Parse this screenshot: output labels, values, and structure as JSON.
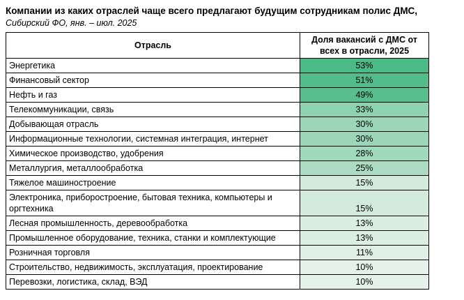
{
  "title": "Компании из каких отраслей чаще всего предлагают будущим сотрудникам полис ДМС,",
  "subtitle": "Сибирский ФО, янв. – июл. 2025",
  "table": {
    "headers": [
      "Отрасль",
      "Доля вакансий с ДМС от всех в отрасли, 2025"
    ],
    "rows": [
      {
        "industry": "Энергетика",
        "value": "53%",
        "color": "#4CBA87"
      },
      {
        "industry": "Финансовый сектор",
        "value": "51%",
        "color": "#52BC8A"
      },
      {
        "industry": "Нефть и газ",
        "value": "49%",
        "color": "#58BE8E"
      },
      {
        "industry": "Телекоммуникации, связь",
        "value": "33%",
        "color": "#8FD2AF"
      },
      {
        "industry": "Добывающая отрасль",
        "value": "30%",
        "color": "#9AD6B7"
      },
      {
        "industry": "Информационные технологии, системная интеграция, интернет",
        "value": "30%",
        "color": "#9AD6B7"
      },
      {
        "industry": "Химическое производство, удобрения",
        "value": "28%",
        "color": "#A1D9BB"
      },
      {
        "industry": "Металлургия, металлообработка",
        "value": "25%",
        "color": "#ABDCC2"
      },
      {
        "industry": "Тяжелое машиностроение",
        "value": "15%",
        "color": "#D3EBDC"
      },
      {
        "industry": "Электроника, приборостроение, бытовая техника, компьютеры и оргтехника",
        "value": "15%",
        "color": "#D3EBDC"
      },
      {
        "industry": "Лесная промышленность, деревообработка",
        "value": "13%",
        "color": "#DAEEE2"
      },
      {
        "industry": "Промышленное оборудование, техника, станки и комплектующие",
        "value": "13%",
        "color": "#DAEEE2"
      },
      {
        "industry": "Розничная торговля",
        "value": "11%",
        "color": "#E0F0E6"
      },
      {
        "industry": "Строительство, недвижимость, эксплуатация, проектирование",
        "value": "10%",
        "color": "#E4F2E9"
      },
      {
        "industry": "Перевозки, логистика, склад, ВЭД",
        "value": "10%",
        "color": "#E4F2E9"
      }
    ]
  },
  "chart_data": {
    "type": "table",
    "title": "Компании из каких отраслей чаще всего предлагают будущим сотрудникам полис ДМС,",
    "subtitle": "Сибирский ФО, янв. – июл. 2025",
    "columns": [
      "Отрасль",
      "Доля вакансий с ДМС от всех в отрасли, 2025"
    ],
    "categories": [
      "Энергетика",
      "Финансовый сектор",
      "Нефть и газ",
      "Телекоммуникации, связь",
      "Добывающая отрасль",
      "Информационные технологии, системная интеграция, интернет",
      "Химическое производство, удобрения",
      "Металлургия, металлообработка",
      "Тяжелое машиностроение",
      "Электроника, приборостроение, бытовая техника, компьютеры и оргтехника",
      "Лесная промышленность, деревообработка",
      "Промышленное оборудование, техника, станки и комплектующие",
      "Розничная торговля",
      "Строительство, недвижимость, эксплуатация, проектирование",
      "Перевозки, логистика, склад, ВЭД"
    ],
    "values": [
      53,
      51,
      49,
      33,
      30,
      30,
      28,
      25,
      15,
      15,
      13,
      13,
      11,
      10,
      10
    ],
    "value_unit": "%",
    "color_scale": {
      "min_value": 10,
      "max_value": 53,
      "min_color": "#E7F3EB",
      "max_color": "#4CBA87"
    }
  }
}
